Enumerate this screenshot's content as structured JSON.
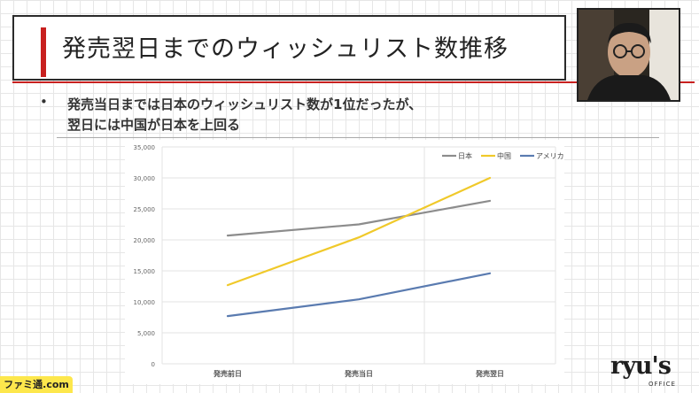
{
  "slide": {
    "title": "発売翌日までのウィッシュリスト数推移",
    "bullet_marker": "•",
    "bullet_line1": "発売当日までは日本のウィッシュリスト数が1位だったが、",
    "bullet_line2": "翌日には中国が日本を上回る"
  },
  "logo": {
    "main": "ryu's",
    "sub": "OFFICE"
  },
  "watermark": {
    "text": "ファミ通.com"
  },
  "colors": {
    "accent_red": "#c8201f",
    "japan": "#8c8c8c",
    "china": "#f0c92a",
    "america": "#5a7bb0",
    "grid": "#e6e6e6"
  },
  "chart_data": {
    "type": "line",
    "categories": [
      "発売前日",
      "発売当日",
      "発売翌日"
    ],
    "ylim": [
      0,
      35000
    ],
    "yticks": [
      "0",
      "5,000",
      "10,000",
      "15,000",
      "20,000",
      "25,000",
      "30,000",
      "35,000"
    ],
    "ytick_values": [
      0,
      5000,
      10000,
      15000,
      20000,
      25000,
      30000,
      35000
    ],
    "grid": true,
    "legend_position": "top-right",
    "series": [
      {
        "name": "日本",
        "values": [
          20700,
          22500,
          26300
        ],
        "color": "#8c8c8c"
      },
      {
        "name": "中国",
        "values": [
          12700,
          20400,
          30000
        ],
        "color": "#f0c92a"
      },
      {
        "name": "アメリカ",
        "values": [
          7700,
          10400,
          14600
        ],
        "color": "#5a7bb0"
      }
    ]
  }
}
